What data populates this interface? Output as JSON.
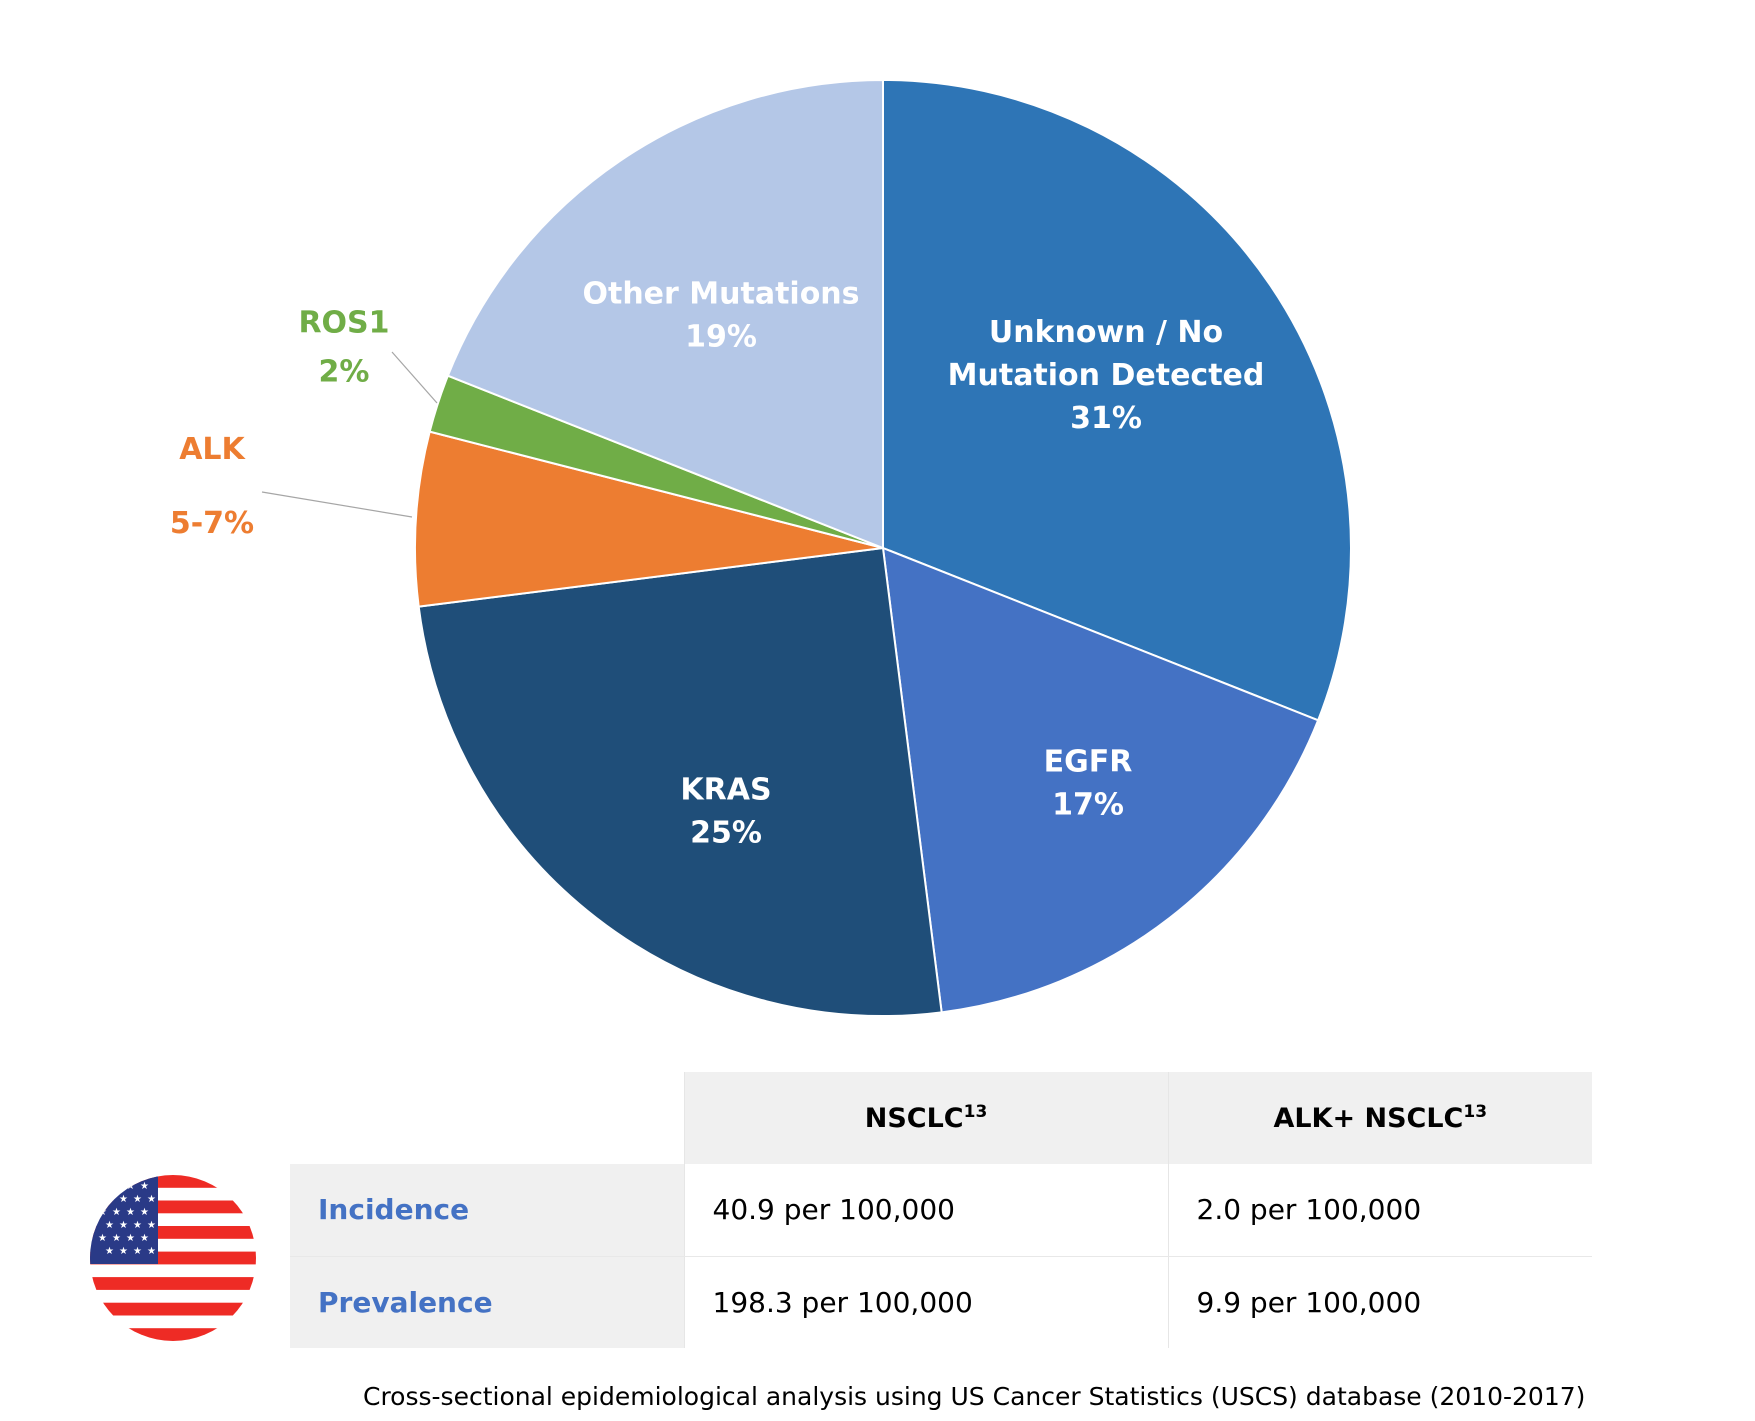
{
  "chart_data": {
    "type": "pie",
    "start_angle_deg": 0,
    "direction": "clockwise",
    "slices": [
      {
        "label_lines": [
          "Unknown / No",
          "Mutation Detected"
        ],
        "value_text": "31%",
        "value": 31,
        "color": "#2e75b6",
        "label_color": "#ffffff",
        "label_placement": "inside"
      },
      {
        "label_lines": [
          "EGFR"
        ],
        "value_text": "17%",
        "value": 17,
        "color": "#4472c4",
        "label_color": "#ffffff",
        "label_placement": "inside"
      },
      {
        "label_lines": [
          "KRAS"
        ],
        "value_text": "25%",
        "value": 25,
        "color": "#1f4e79",
        "label_color": "#ffffff",
        "label_placement": "inside"
      },
      {
        "label_lines": [
          "ALK"
        ],
        "value_text": "5-7%",
        "value": 6,
        "color": "#ed7d31",
        "label_color": "#ed7d31",
        "label_placement": "outside-large"
      },
      {
        "label_lines": [
          "ROS1"
        ],
        "value_text": "2%",
        "value": 2,
        "color": "#70ad47",
        "label_color": "#70ad47",
        "label_placement": "outside"
      },
      {
        "label_lines": [
          "Other Mutations"
        ],
        "value_text": "19%",
        "value": 19,
        "color": "#b4c7e7",
        "label_color": "#ffffff",
        "label_placement": "inside"
      }
    ]
  },
  "table": {
    "col_headers": [
      "NSCLC",
      "ALK+ NSCLC"
    ],
    "col_header_sup": [
      "13",
      "13"
    ],
    "rows": [
      {
        "label": "Incidence",
        "values": [
          "40.9 per 100,000",
          "2.0 per 100,000"
        ]
      },
      {
        "label": "Prevalence",
        "values": [
          "198.3 per 100,000",
          "9.9 per 100,000"
        ]
      }
    ],
    "flag_icon": "us-flag-icon"
  },
  "source_note": "Cross-sectional epidemiological analysis using US Cancer Statistics (USCS) database (2010-2017)"
}
